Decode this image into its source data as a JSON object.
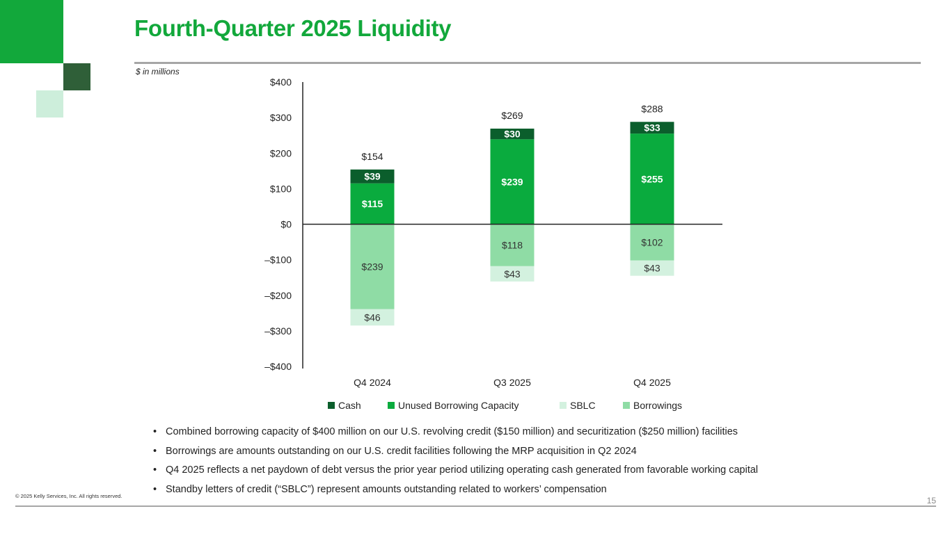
{
  "page": {
    "title": "Fourth-Quarter 2025 Liquidity",
    "unit_note": "$ in millions",
    "copyright": "© 2025 Kelly Services, Inc. All rights reserved.",
    "page_number": "15",
    "bullets": [
      "Combined borrowing capacity of $400 million on our U.S. revolving credit ($150 million) and securitization ($250 million) facilities",
      "Borrowings are amounts outstanding on our U.S. credit facilities following the MRP acquisition in Q2 2024",
      "Q4 2025 reflects a net paydown of debt versus the prior year period utilizing operating cash generated from favorable working capital",
      "Standby letters of credit (“SBLC”) represent amounts outstanding related to workers’ compensation"
    ]
  },
  "colors": {
    "brand_green": "#12a83b",
    "dark_green": "#2f5f38",
    "light_green": "#cdeedb",
    "cash": "#0b5e2c",
    "unused_capacity": "#0aab3e",
    "sblc": "#d3f1df",
    "borrowings": "#8fdca5"
  },
  "chart_data": {
    "type": "bar",
    "stacked": true,
    "categories": [
      "Q4 2024",
      "Q3 2025",
      "Q4 2025"
    ],
    "ylim": [
      -400,
      400
    ],
    "yticks": [
      400,
      300,
      200,
      100,
      0,
      -100,
      -200,
      -300,
      -400
    ],
    "ytick_labels": [
      "$400",
      "$300",
      "$200",
      "$100",
      "$0",
      "–$100",
      "–$200",
      "–$300",
      "–$400"
    ],
    "series": [
      {
        "name": "Cash",
        "key": "cash",
        "values": [
          39,
          30,
          33
        ],
        "labels": [
          "$39",
          "$30",
          "$33"
        ]
      },
      {
        "name": "Unused Borrowing Capacity",
        "key": "unused_capacity",
        "values": [
          115,
          239,
          255
        ],
        "labels": [
          "$115",
          "$239",
          "$255"
        ]
      },
      {
        "name": "SBLC",
        "key": "sblc",
        "values": [
          -46,
          -43,
          -43
        ],
        "labels": [
          "$46",
          "$43",
          "$43"
        ]
      },
      {
        "name": "Borrowings",
        "key": "borrowings",
        "values": [
          -239,
          -118,
          -102
        ],
        "labels": [
          "$239",
          "$118",
          "$102"
        ]
      }
    ],
    "totals": [
      154,
      269,
      288
    ],
    "total_labels": [
      "$154",
      "$269",
      "$288"
    ],
    "legend_order": [
      "Cash",
      "Unused Borrowing Capacity",
      "SBLC",
      "Borrowings"
    ],
    "legend_position": "bottom"
  }
}
